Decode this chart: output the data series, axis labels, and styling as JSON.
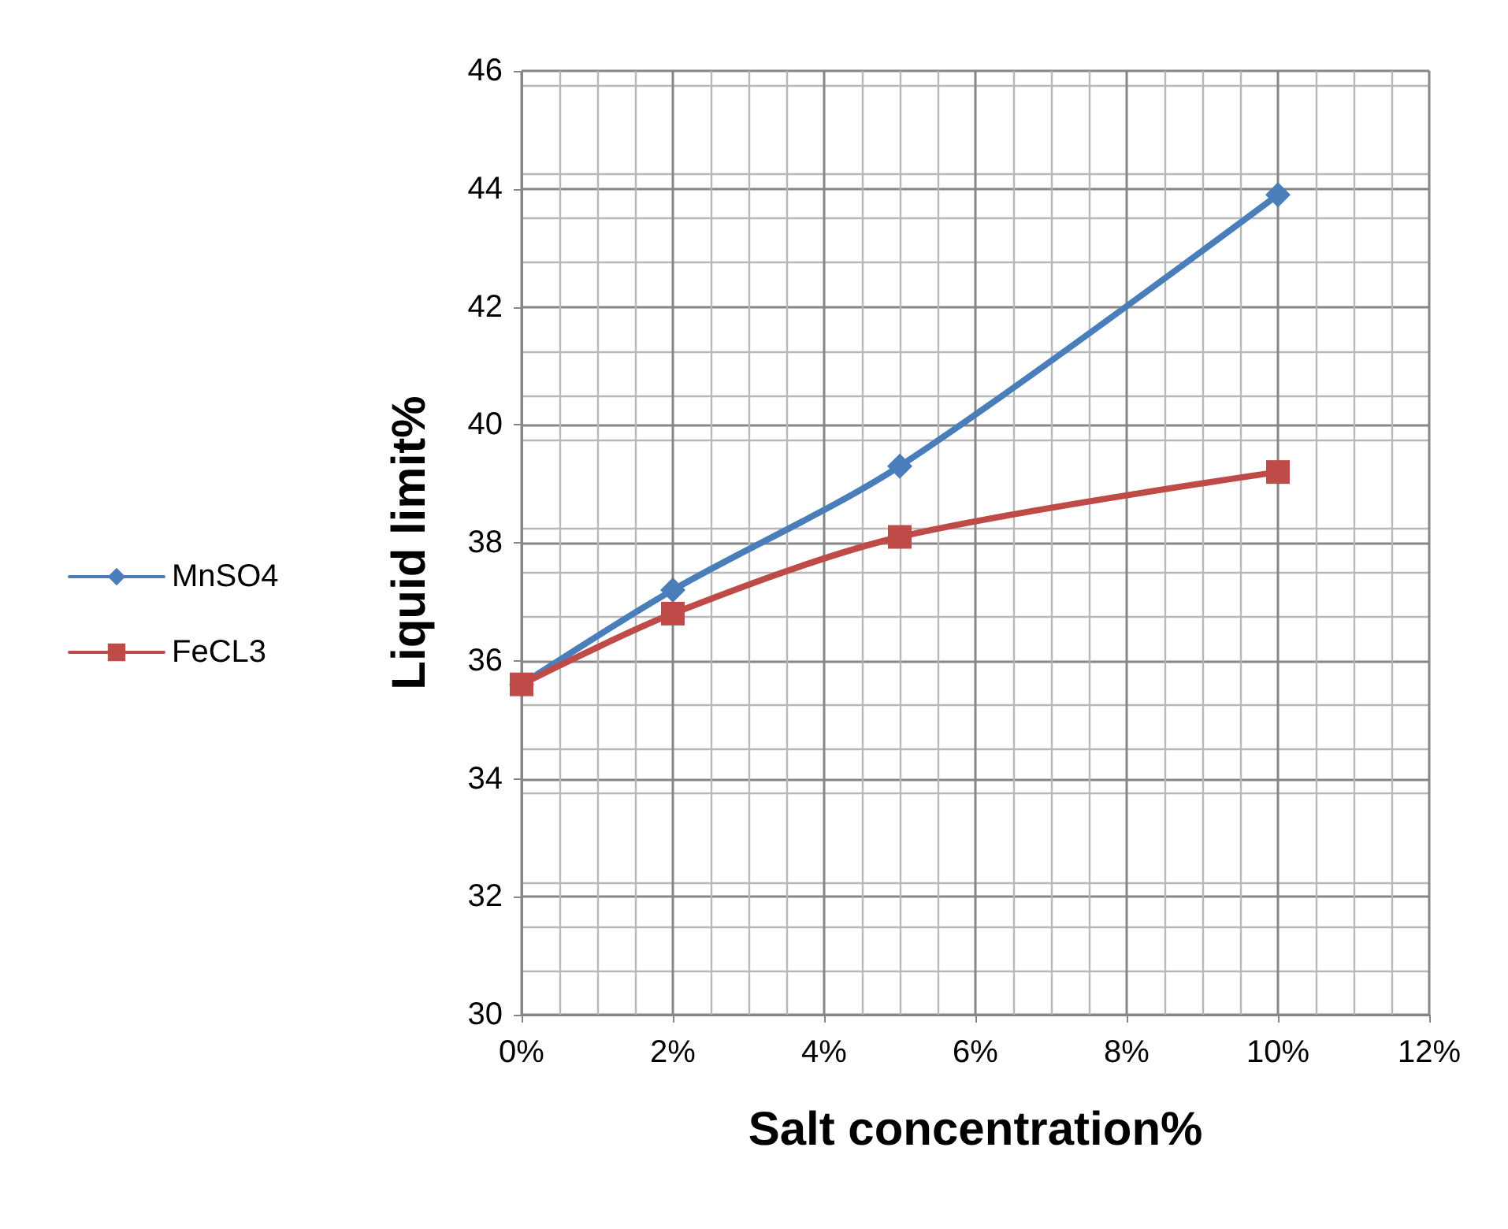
{
  "chart_data": {
    "type": "line",
    "xlabel": "Salt concentration%",
    "ylabel": "Liquid limit%",
    "x": [
      0,
      2,
      5,
      10
    ],
    "series": [
      {
        "name": "MnSO4",
        "color": "#4a7ebb",
        "marker": "diamond",
        "values": [
          35.6,
          37.2,
          39.3,
          43.9
        ]
      },
      {
        "name": "FeCL3",
        "color": "#be4b48",
        "marker": "square",
        "values": [
          35.6,
          36.8,
          38.1,
          39.2
        ]
      }
    ],
    "xlim": [
      0,
      12
    ],
    "xticks": [
      {
        "value": 0,
        "label": "0%"
      },
      {
        "value": 2,
        "label": "2%"
      },
      {
        "value": 4,
        "label": "4%"
      },
      {
        "value": 6,
        "label": "6%"
      },
      {
        "value": 8,
        "label": "8%"
      },
      {
        "value": 10,
        "label": "10%"
      },
      {
        "value": 12,
        "label": "12%"
      }
    ],
    "ylim": [
      30,
      46
    ],
    "yticks": [
      30,
      32,
      34,
      36,
      38,
      40,
      42,
      44,
      46
    ],
    "grid": true,
    "legend": "left",
    "line_style": "solid"
  }
}
